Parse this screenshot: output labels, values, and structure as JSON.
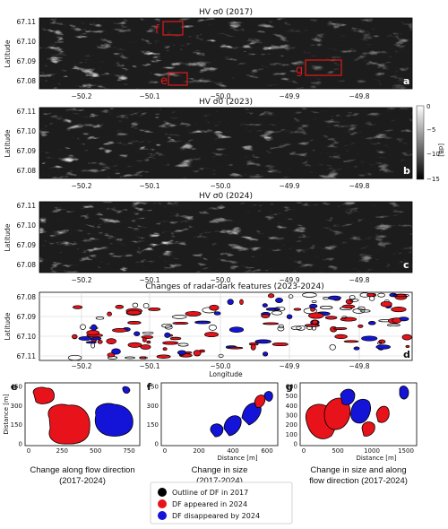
{
  "panels": [
    {
      "key": "a",
      "title": "HV σ0 (2017)",
      "ylabel": "Latitude",
      "yticks": [
        "67.11",
        "67.10",
        "67.09",
        "67.08"
      ],
      "xticks": [
        "−50.2",
        "−50.1",
        "−50.0",
        "−49.9",
        "−49.8"
      ],
      "letter": "a"
    },
    {
      "key": "b",
      "title": "HV σ0 (2023)",
      "ylabel": "Latitude",
      "yticks": [
        "67.11",
        "67.10",
        "67.09",
        "67.08"
      ],
      "xticks": [
        "−50.2",
        "−50.1",
        "−50.0",
        "−49.9",
        "−49.8"
      ],
      "letter": "b"
    },
    {
      "key": "c",
      "title": "HV σ0 (2024)",
      "ylabel": "Latitude",
      "yticks": [
        "67.11",
        "67.10",
        "67.09",
        "67.08"
      ],
      "xticks": [
        "−50.2",
        "−50.1",
        "−50.0",
        "−49.9",
        "−49.8"
      ],
      "letter": "c"
    }
  ],
  "regions": {
    "f": "f",
    "e": "e",
    "g": "g"
  },
  "colorbar": {
    "unit": "[dB]",
    "ticks": [
      "0",
      "−5",
      "−10",
      "−15"
    ]
  },
  "changes": {
    "title": "Changes of radar-dark features (2023-2024)",
    "ylabel": "Latitude",
    "xlabel": "Longitude",
    "yticks": [
      "67.08",
      "67.09",
      "67.10",
      "67.11"
    ],
    "xticks": [
      "−50.2",
      "−50.1",
      "−50.0",
      "−49.9",
      "−49.8"
    ],
    "letter": "d"
  },
  "insets": [
    {
      "letter": "e",
      "ylabel": "Distance [m]",
      "xlabel": "",
      "yticks": [
        "450",
        "300",
        "150",
        "0"
      ],
      "xticks": [
        "0",
        "250",
        "500",
        "750"
      ],
      "caption": [
        "Change along flow direction",
        "(2017-2024)"
      ]
    },
    {
      "letter": "f",
      "ylabel": "",
      "xlabel": "Distance [m]",
      "yticks": [
        "450",
        "300",
        "150",
        "0"
      ],
      "xticks": [
        "0",
        "200",
        "400",
        "600"
      ],
      "caption": [
        "Change in size",
        "(2017-2024)"
      ]
    },
    {
      "letter": "g",
      "ylabel": "",
      "xlabel": "Distance [m]",
      "yticks": [
        "600",
        "500",
        "400",
        "300",
        "200",
        "100",
        "0"
      ],
      "xticks": [
        "0",
        "500",
        "1000",
        "1500"
      ],
      "caption": [
        "Change in size and along",
        "flow direction (2017-2024)"
      ]
    }
  ],
  "legend": [
    {
      "label": "Outline of DF in 2017",
      "color": "#000000"
    },
    {
      "label": "DF appeared in 2024",
      "color": "#e8121a"
    },
    {
      "label": "DF disappeared by 2024",
      "color": "#1414d8"
    }
  ]
}
